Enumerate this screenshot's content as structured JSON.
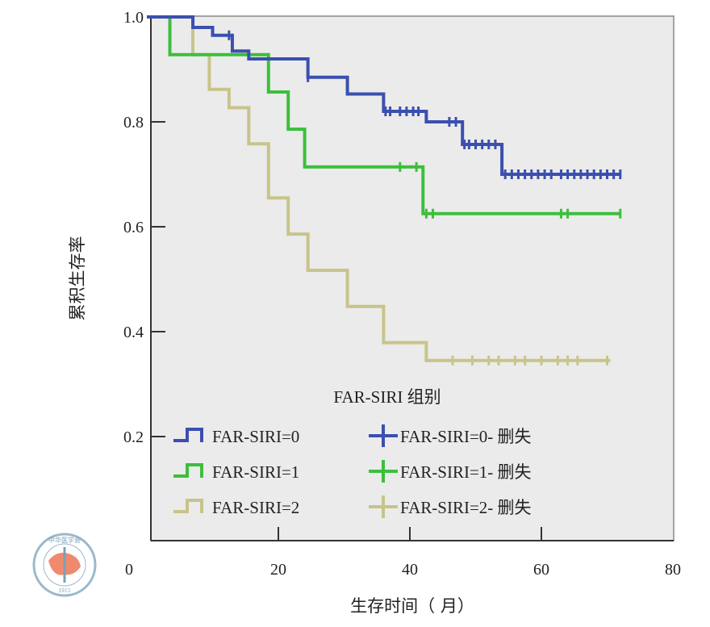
{
  "chart_data": {
    "type": "line",
    "subtype": "kaplan-meier step",
    "xlabel": "生存时间（ 月）",
    "ylabel": "累积生存率",
    "xlim": [
      0,
      80
    ],
    "ylim": [
      0,
      1.0
    ],
    "xticks": [
      "0",
      "20",
      "40",
      "60",
      "80"
    ],
    "yticks": [
      "0.2",
      "0.4",
      "0.6",
      "0.8",
      "1.0"
    ],
    "ytick_values": [
      0.2,
      0.4,
      0.6,
      0.8,
      1.0
    ],
    "xtick_values": [
      0,
      20,
      40,
      60,
      80
    ],
    "legend_title": "FAR-SIRI 组别",
    "legend_position": "bottom-center",
    "series": [
      {
        "name": "FAR-SIRI=0",
        "censor_label": "FAR-SIRI=0- 删失",
        "color": "#3b4fb0",
        "steps": [
          [
            0,
            1.0
          ],
          [
            7,
            0.98
          ],
          [
            10,
            0.965
          ],
          [
            13,
            0.935
          ],
          [
            15.5,
            0.92
          ],
          [
            24.5,
            0.885
          ],
          [
            30.5,
            0.853
          ],
          [
            36,
            0.82
          ],
          [
            42.5,
            0.8
          ],
          [
            48,
            0.757
          ],
          [
            54,
            0.7
          ],
          [
            72,
            0.7
          ]
        ],
        "censored": [
          12.5,
          24.5,
          36.3,
          37,
          38.5,
          39.5,
          40.5,
          41.3,
          46,
          47,
          48.3,
          49,
          50,
          51,
          52,
          53,
          54.5,
          55.5,
          56.5,
          57.5,
          58.5,
          59.5,
          60.5,
          61.5,
          63,
          64,
          65,
          66,
          67,
          68,
          69,
          70,
          71,
          72
        ]
      },
      {
        "name": "FAR-SIRI=1",
        "censor_label": "FAR-SIRI=1- 删失",
        "color": "#3cbf3c",
        "steps": [
          [
            0,
            1.0
          ],
          [
            3.5,
            0.928
          ],
          [
            18.5,
            0.857
          ],
          [
            21.5,
            0.786
          ],
          [
            24,
            0.714
          ],
          [
            42,
            0.625
          ],
          [
            72,
            0.625
          ]
        ],
        "censored": [
          38.5,
          41,
          42.5,
          43.5,
          63,
          64,
          72
        ]
      },
      {
        "name": "FAR-SIRI=2",
        "censor_label": "FAR-SIRI=2- 删失",
        "color": "#c8c48a",
        "steps": [
          [
            0,
            1.0
          ],
          [
            7,
            0.928
          ],
          [
            9.5,
            0.862
          ],
          [
            12.5,
            0.827
          ],
          [
            15.5,
            0.758
          ],
          [
            18.5,
            0.655
          ],
          [
            21.5,
            0.586
          ],
          [
            24.5,
            0.517
          ],
          [
            30.5,
            0.448
          ],
          [
            36,
            0.379
          ],
          [
            42.5,
            0.345
          ],
          [
            70.5,
            0.345
          ]
        ],
        "censored": [
          46.5,
          49.5,
          52,
          53.5,
          56,
          57.5,
          60,
          62.5,
          64,
          65.5,
          70
        ]
      }
    ]
  },
  "logo": {
    "text_cn": "中华医学会",
    "text_en": "CHINESE MEDICAL ASSOCIATION",
    "year": "1915"
  }
}
